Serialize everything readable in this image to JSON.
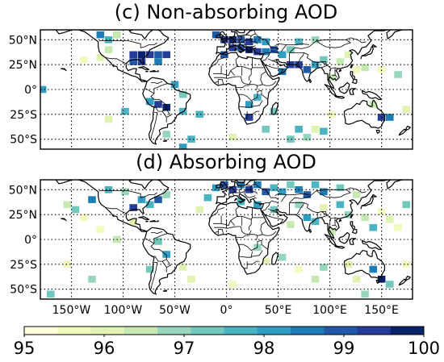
{
  "panels": [
    {
      "title": "(c) Non-absorbing AOD",
      "y_ticks": [
        "50°N",
        "25°N",
        "0°",
        "25°S",
        "50°S"
      ],
      "cells": [
        {
          "lon": -122,
          "lat": 55,
          "pct": 98.4
        },
        {
          "lon": -114,
          "lat": 50,
          "pct": 97.6
        },
        {
          "lon": -106,
          "lat": 55,
          "pct": 96.6
        },
        {
          "lon": -90,
          "lat": 35,
          "pct": 99.4
        },
        {
          "lon": -82,
          "lat": 35,
          "pct": 99.6
        },
        {
          "lon": -74,
          "lat": 35,
          "pct": 99.2
        },
        {
          "lon": -66,
          "lat": 35,
          "pct": 98.8
        },
        {
          "lon": -58,
          "lat": 35,
          "pct": 99.5
        },
        {
          "lon": -90,
          "lat": 28,
          "pct": 99.0
        },
        {
          "lon": -82,
          "lat": 28,
          "pct": 99.3
        },
        {
          "lon": -66,
          "lat": 28,
          "pct": 98.6
        },
        {
          "lon": -114,
          "lat": 40,
          "pct": 96.4
        },
        {
          "lon": -138,
          "lat": 30,
          "pct": 95.7
        },
        {
          "lon": -122,
          "lat": 32,
          "pct": 96.1
        },
        {
          "lon": -50,
          "lat": 5,
          "pct": 98.3
        },
        {
          "lon": -66,
          "lat": -15,
          "pct": 99.2
        },
        {
          "lon": -58,
          "lat": -18,
          "pct": 99.6
        },
        {
          "lon": -74,
          "lat": -12,
          "pct": 98.0
        },
        {
          "lon": -42,
          "lat": -5,
          "pct": 97.2
        },
        {
          "lon": -42,
          "lat": -22,
          "pct": 97.5
        },
        {
          "lon": -26,
          "lat": -25,
          "pct": 97.8
        },
        {
          "lon": -98,
          "lat": -22,
          "pct": 97.9
        },
        {
          "lon": -114,
          "lat": -30,
          "pct": 95.9
        },
        {
          "lon": -58,
          "lat": -45,
          "pct": 96.9
        },
        {
          "lon": -42,
          "lat": -58,
          "pct": 98.2
        },
        {
          "lon": -34,
          "lat": -50,
          "pct": 97.6
        },
        {
          "lon": -178,
          "lat": 0,
          "pct": 98.0
        },
        {
          "lon": -10,
          "lat": 55,
          "pct": 99.0
        },
        {
          "lon": -2,
          "lat": 50,
          "pct": 99.4
        },
        {
          "lon": 6,
          "lat": 50,
          "pct": 99.7
        },
        {
          "lon": 14,
          "lat": 50,
          "pct": 99.1
        },
        {
          "lon": 22,
          "lat": 48,
          "pct": 99.5
        },
        {
          "lon": 30,
          "lat": 50,
          "pct": 98.7
        },
        {
          "lon": 38,
          "lat": 48,
          "pct": 98.3
        },
        {
          "lon": 6,
          "lat": 42,
          "pct": 99.3
        },
        {
          "lon": 14,
          "lat": 42,
          "pct": 99.0
        },
        {
          "lon": 22,
          "lat": 40,
          "pct": 99.6
        },
        {
          "lon": 30,
          "lat": 38,
          "pct": 99.2
        },
        {
          "lon": 38,
          "lat": 38,
          "pct": 98.5
        },
        {
          "lon": 46,
          "lat": 40,
          "pct": 99.1
        },
        {
          "lon": -2,
          "lat": 35,
          "pct": 98.9
        },
        {
          "lon": 54,
          "lat": 35,
          "pct": 98.0
        },
        {
          "lon": 62,
          "lat": 40,
          "pct": 97.3
        },
        {
          "lon": 70,
          "lat": 48,
          "pct": 97.8
        },
        {
          "lon": 86,
          "lat": 50,
          "pct": 97.0
        },
        {
          "lon": 62,
          "lat": 25,
          "pct": 99.2
        },
        {
          "lon": 70,
          "lat": 25,
          "pct": 99.5
        },
        {
          "lon": 78,
          "lat": 20,
          "pct": 99.0
        },
        {
          "lon": 54,
          "lat": 18,
          "pct": 98.4
        },
        {
          "lon": 86,
          "lat": 25,
          "pct": 98.1
        },
        {
          "lon": 94,
          "lat": 30,
          "pct": 97.4
        },
        {
          "lon": 110,
          "lat": 28,
          "pct": 96.6
        },
        {
          "lon": 118,
          "lat": 35,
          "pct": 96.0
        },
        {
          "lon": 126,
          "lat": 20,
          "pct": 95.8
        },
        {
          "lon": 134,
          "lat": 22,
          "pct": 96.3
        },
        {
          "lon": 150,
          "lat": 20,
          "pct": 95.6
        },
        {
          "lon": 166,
          "lat": 15,
          "pct": 96.8
        },
        {
          "lon": 102,
          "lat": 12,
          "pct": 96.4
        },
        {
          "lon": 30,
          "lat": -8,
          "pct": 97.7
        },
        {
          "lon": 22,
          "lat": -15,
          "pct": 98.2
        },
        {
          "lon": 22,
          "lat": -28,
          "pct": 99.5
        },
        {
          "lon": 46,
          "lat": -22,
          "pct": 97.4
        },
        {
          "lon": 38,
          "lat": -40,
          "pct": 97.1
        },
        {
          "lon": 70,
          "lat": -40,
          "pct": 97.9
        },
        {
          "lon": 78,
          "lat": -48,
          "pct": 96.9
        },
        {
          "lon": 86,
          "lat": -40,
          "pct": 96.2
        },
        {
          "lon": 94,
          "lat": -42,
          "pct": 97.5
        },
        {
          "lon": 62,
          "lat": -50,
          "pct": 97.2
        },
        {
          "lon": 6,
          "lat": -48,
          "pct": 96.0
        },
        {
          "lon": 102,
          "lat": -25,
          "pct": 95.7
        },
        {
          "lon": 150,
          "lat": -28,
          "pct": 99.4
        },
        {
          "lon": 158,
          "lat": -28,
          "pct": 98.6
        },
        {
          "lon": 142,
          "lat": -15,
          "pct": 96.5
        },
        {
          "lon": 174,
          "lat": -20,
          "pct": 95.9
        }
      ]
    },
    {
      "title": "(d) Absorbing AOD",
      "y_ticks": [
        "50°N",
        "25°N",
        "0°",
        "25°S",
        "50°S"
      ],
      "cells": [
        {
          "lon": -154,
          "lat": 35,
          "pct": 96.6
        },
        {
          "lon": -146,
          "lat": 30,
          "pct": 97.2
        },
        {
          "lon": -138,
          "lat": 22,
          "pct": 95.8
        },
        {
          "lon": -130,
          "lat": 40,
          "pct": 98.6
        },
        {
          "lon": -114,
          "lat": 50,
          "pct": 97.8
        },
        {
          "lon": -98,
          "lat": 48,
          "pct": 97.0
        },
        {
          "lon": -90,
          "lat": 32,
          "pct": 99.3
        },
        {
          "lon": -82,
          "lat": 40,
          "pct": 98.2
        },
        {
          "lon": -74,
          "lat": 35,
          "pct": 97.6
        },
        {
          "lon": -66,
          "lat": 40,
          "pct": 98.8
        },
        {
          "lon": -58,
          "lat": 45,
          "pct": 96.9
        },
        {
          "lon": -90,
          "lat": 18,
          "pct": 96.1
        },
        {
          "lon": -122,
          "lat": 10,
          "pct": 95.7
        },
        {
          "lon": -106,
          "lat": 0,
          "pct": 96.4
        },
        {
          "lon": -66,
          "lat": -2,
          "pct": 97.3
        },
        {
          "lon": -58,
          "lat": -15,
          "pct": 98.0
        },
        {
          "lon": -74,
          "lat": -30,
          "pct": 97.1
        },
        {
          "lon": -42,
          "lat": -28,
          "pct": 96.2
        },
        {
          "lon": -34,
          "lat": -40,
          "pct": 95.9
        },
        {
          "lon": -130,
          "lat": -40,
          "pct": 96.8
        },
        {
          "lon": -154,
          "lat": -25,
          "pct": 95.6
        },
        {
          "lon": -170,
          "lat": -55,
          "pct": 97.4
        },
        {
          "lon": -26,
          "lat": 30,
          "pct": 96.0
        },
        {
          "lon": -18,
          "lat": 42,
          "pct": 97.5
        },
        {
          "lon": -10,
          "lat": 52,
          "pct": 98.3
        },
        {
          "lon": -2,
          "lat": 55,
          "pct": 99.1
        },
        {
          "lon": 6,
          "lat": 50,
          "pct": 99.5
        },
        {
          "lon": 14,
          "lat": 55,
          "pct": 98.6
        },
        {
          "lon": 22,
          "lat": 50,
          "pct": 99.2
        },
        {
          "lon": 30,
          "lat": 55,
          "pct": 98.4
        },
        {
          "lon": 38,
          "lat": 48,
          "pct": 98.9
        },
        {
          "lon": 46,
          "lat": 52,
          "pct": 97.6
        },
        {
          "lon": 54,
          "lat": 48,
          "pct": 98.1
        },
        {
          "lon": 62,
          "lat": 55,
          "pct": 97.3
        },
        {
          "lon": 70,
          "lat": 50,
          "pct": 98.7
        },
        {
          "lon": 78,
          "lat": 45,
          "pct": 99.0
        },
        {
          "lon": 86,
          "lat": 55,
          "pct": 97.9
        },
        {
          "lon": 94,
          "lat": 48,
          "pct": 98.5
        },
        {
          "lon": 110,
          "lat": 52,
          "pct": 97.1
        },
        {
          "lon": 126,
          "lat": 45,
          "pct": 96.5
        },
        {
          "lon": 14,
          "lat": 38,
          "pct": 97.8
        },
        {
          "lon": 30,
          "lat": 35,
          "pct": 98.2
        },
        {
          "lon": 46,
          "lat": 30,
          "pct": 97.4
        },
        {
          "lon": 70,
          "lat": 35,
          "pct": 96.7
        },
        {
          "lon": 94,
          "lat": 32,
          "pct": 96.1
        },
        {
          "lon": 110,
          "lat": 35,
          "pct": 97.6
        },
        {
          "lon": 118,
          "lat": 25,
          "pct": 96.9
        },
        {
          "lon": 134,
          "lat": 22,
          "pct": 96.3
        },
        {
          "lon": 142,
          "lat": 12,
          "pct": 97.7
        },
        {
          "lon": 150,
          "lat": 28,
          "pct": 95.7
        },
        {
          "lon": 158,
          "lat": 20,
          "pct": 96.0
        },
        {
          "lon": 174,
          "lat": 35,
          "pct": 97.2
        },
        {
          "lon": 166,
          "lat": 12,
          "pct": 95.8
        },
        {
          "lon": 62,
          "lat": 15,
          "pct": 96.4
        },
        {
          "lon": 78,
          "lat": 22,
          "pct": 98.0
        },
        {
          "lon": 86,
          "lat": 18,
          "pct": 97.5
        },
        {
          "lon": 102,
          "lat": 8,
          "pct": 96.6
        },
        {
          "lon": 30,
          "lat": -8,
          "pct": 96.8
        },
        {
          "lon": 38,
          "lat": -22,
          "pct": 96.1
        },
        {
          "lon": 54,
          "lat": -18,
          "pct": 97.0
        },
        {
          "lon": 70,
          "lat": -30,
          "pct": 95.8
        },
        {
          "lon": 86,
          "lat": -40,
          "pct": 96.5
        },
        {
          "lon": 94,
          "lat": -28,
          "pct": 96.9
        },
        {
          "lon": 118,
          "lat": -25,
          "pct": 96.2
        },
        {
          "lon": 126,
          "lat": -40,
          "pct": 95.9
        },
        {
          "lon": 134,
          "lat": -55,
          "pct": 96.7
        },
        {
          "lon": 142,
          "lat": -30,
          "pct": 98.4
        },
        {
          "lon": 150,
          "lat": -40,
          "pct": 99.6
        },
        {
          "lon": 158,
          "lat": -45,
          "pct": 97.3
        },
        {
          "lon": 174,
          "lat": -25,
          "pct": 95.6
        },
        {
          "lon": 6,
          "lat": -45,
          "pct": 95.7
        }
      ]
    }
  ],
  "x_ticks": [
    "150°W",
    "100°W",
    "50°W",
    "0°",
    "50°E",
    "100°E",
    "150°E"
  ],
  "colorbar": {
    "min": 95,
    "max": 100,
    "ticks": [
      "95",
      "96",
      "97",
      "98",
      "99",
      "100"
    ],
    "colors": [
      "#ffffd9",
      "#f3fabf",
      "#e1f3b2",
      "#c6e9b4",
      "#97d6bb",
      "#73c8bd",
      "#4ab4c3",
      "#2f9ec2",
      "#1d7eb7",
      "#2259a6",
      "#253d97",
      "#08236b"
    ]
  }
}
